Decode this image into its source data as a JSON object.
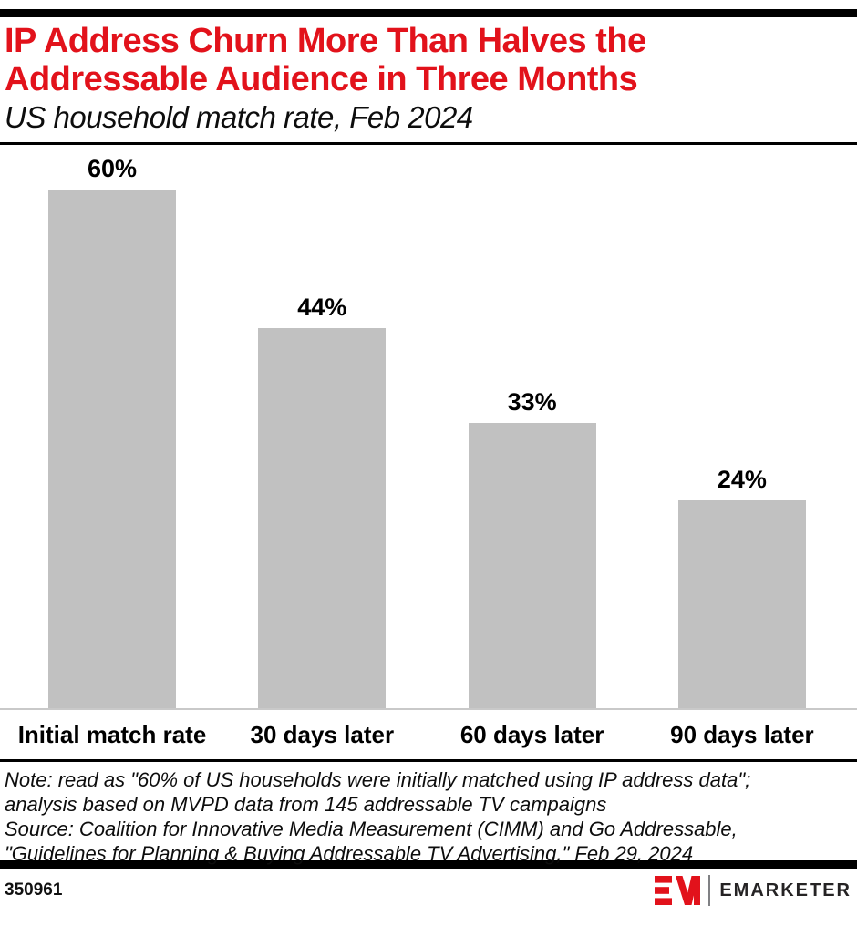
{
  "colors": {
    "accent_red": "#e2121b",
    "bar_gray": "#c1c1c1",
    "axis_gray": "#c9c9c9",
    "rule_black": "#000000",
    "logo_text": "#252324"
  },
  "header": {
    "title_line1": "IP Address Churn More Than Halves the",
    "title_line2": "Addressable Audience in Three Months",
    "subtitle": "US household match rate, Feb 2024"
  },
  "chart_data": {
    "type": "bar",
    "title": "IP Address Churn More Than Halves the Addressable Audience in Three Months",
    "subtitle": "US household match rate, Feb 2024",
    "categories": [
      "Initial match rate",
      "30 days later",
      "60 days later",
      "90 days later"
    ],
    "values": [
      60,
      44,
      33,
      24
    ],
    "value_labels": [
      "60%",
      "44%",
      "33%",
      "24%"
    ],
    "unit": "%",
    "ylim": [
      0,
      65
    ],
    "grid": false,
    "legend": "none",
    "value_label_position": "above-bar",
    "bar_color": "#c1c1c1"
  },
  "notes": {
    "note_line1": "Note: read as \"60% of US households were initially matched using IP address data\";",
    "note_line2": "analysis based on MVPD data from 145 addressable TV campaigns",
    "source_line1": "Source: Coalition for Innovative Media Measurement (CIMM) and Go Addressable,",
    "source_line2": "\"Guidelines for Planning & Buying Addressable TV Advertising,\" Feb 29, 2024"
  },
  "footer": {
    "chart_id": "350961",
    "brand": "EMARKETER"
  }
}
